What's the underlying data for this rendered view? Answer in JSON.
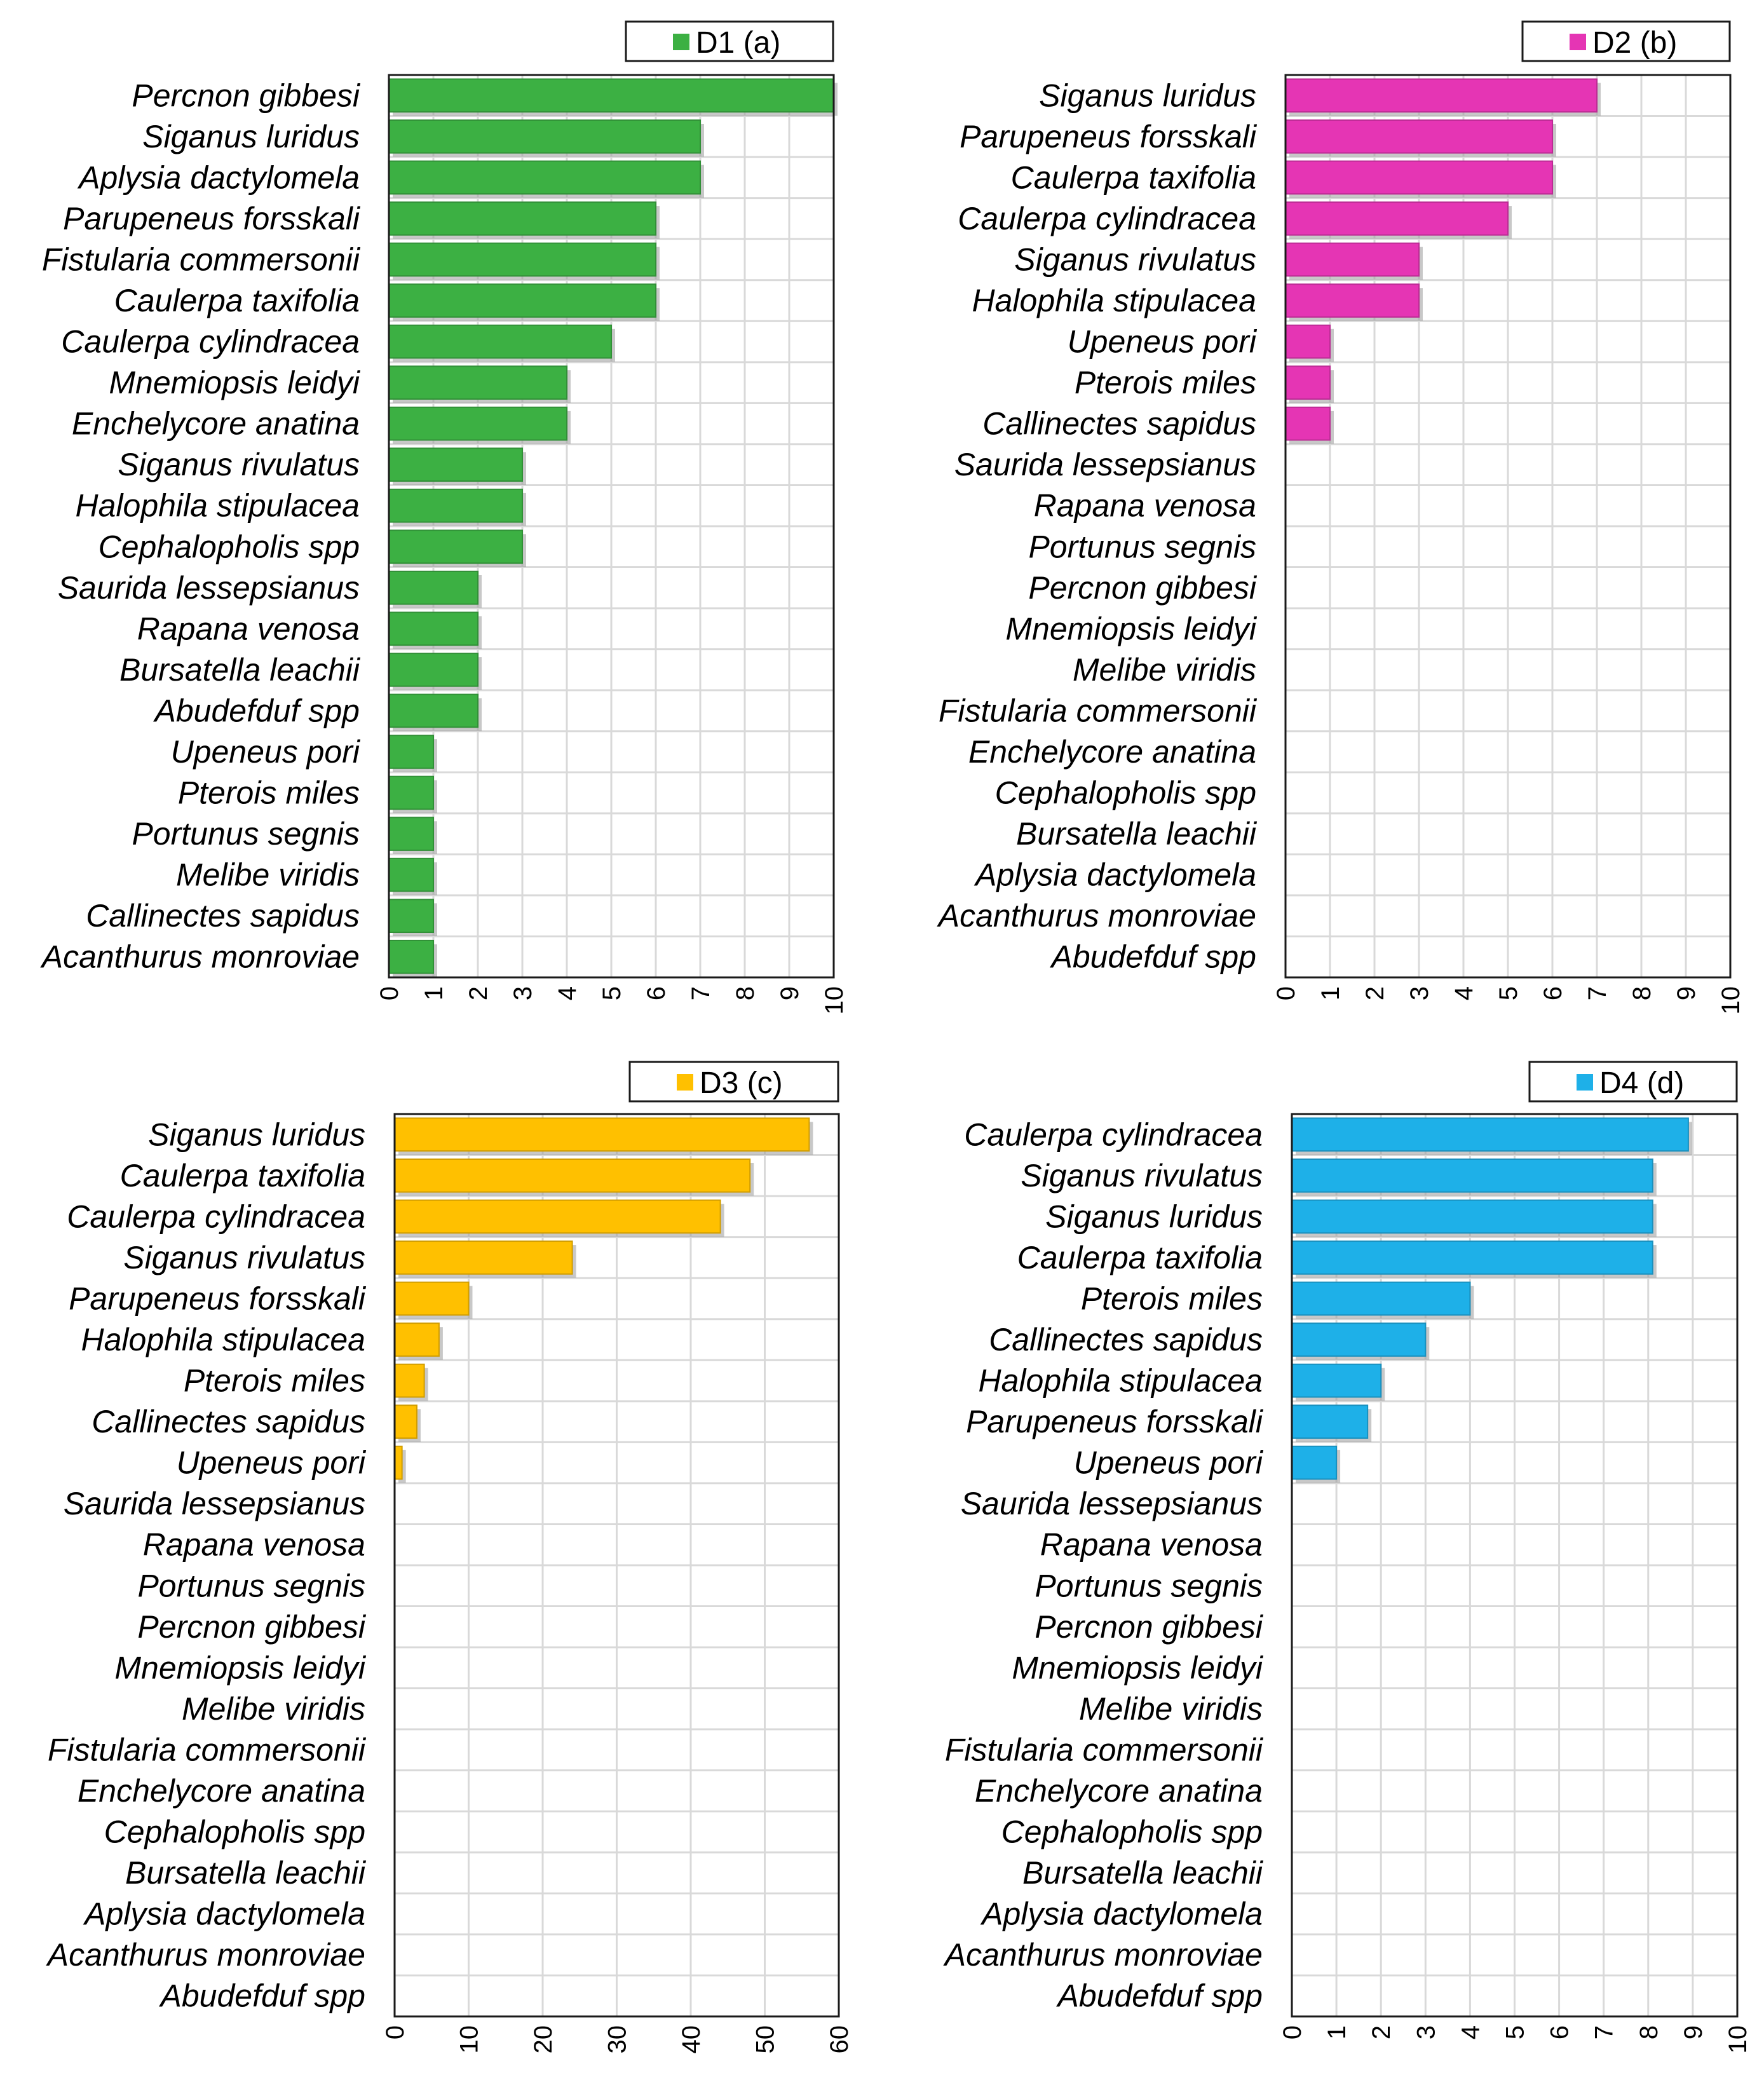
{
  "chart_data": [
    {
      "type": "bar",
      "orientation": "horizontal",
      "legend": "D1 (a)",
      "legend_position": "top-right",
      "color": "#3cb043",
      "xlim": [
        0,
        10
      ],
      "ticks": [
        0,
        1,
        2,
        3,
        4,
        5,
        6,
        7,
        8,
        9,
        10
      ],
      "grid": true,
      "categories": [
        "Percnon gibbesi",
        "Siganus luridus",
        "Aplysia dactylomela",
        "Parupeneus forsskali",
        "Fistularia commersonii",
        "Caulerpa taxifolia",
        "Caulerpa cylindracea",
        "Mnemiopsis leidyi",
        "Enchelycore anatina",
        "Siganus rivulatus",
        "Halophila stipulacea",
        "Cephalopholis spp",
        "Saurida lessepsianus",
        "Rapana venosa",
        "Bursatella leachii",
        "Abudefduf spp",
        "Upeneus pori",
        "Pterois miles",
        "Portunus segnis",
        "Melibe viridis",
        "Callinectes sapidus",
        "Acanthurus monroviae"
      ],
      "values": [
        10,
        7,
        7,
        6,
        6,
        6,
        5,
        4,
        4,
        3,
        3,
        3,
        2,
        2,
        2,
        2,
        1,
        1,
        1,
        1,
        1,
        1
      ]
    },
    {
      "type": "bar",
      "orientation": "horizontal",
      "legend": "D2 (b)",
      "legend_position": "top-right",
      "color": "#e535b4",
      "xlim": [
        0,
        10
      ],
      "ticks": [
        0,
        1,
        2,
        3,
        4,
        5,
        6,
        7,
        8,
        9,
        10
      ],
      "grid": true,
      "categories": [
        "Siganus luridus",
        "Parupeneus forsskali",
        "Caulerpa taxifolia",
        "Caulerpa cylindracea",
        "Siganus rivulatus",
        "Halophila stipulacea",
        "Upeneus pori",
        "Pterois miles",
        "Callinectes sapidus",
        "Saurida lessepsianus",
        "Rapana venosa",
        "Portunus segnis",
        "Percnon gibbesi",
        "Mnemiopsis leidyi",
        "Melibe viridis",
        "Fistularia commersonii",
        "Enchelycore anatina",
        "Cephalopholis spp",
        "Bursatella leachii",
        "Aplysia dactylomela",
        "Acanthurus monroviae",
        "Abudefduf spp"
      ],
      "values": [
        7,
        6,
        6,
        5,
        3,
        3,
        1,
        1,
        1,
        0,
        0,
        0,
        0,
        0,
        0,
        0,
        0,
        0,
        0,
        0,
        0,
        0
      ]
    },
    {
      "type": "bar",
      "orientation": "horizontal",
      "legend": "D3 (c)",
      "legend_position": "top-right",
      "color": "#ffc000",
      "xlim": [
        0,
        60
      ],
      "ticks": [
        0,
        10,
        20,
        30,
        40,
        50,
        60
      ],
      "grid": true,
      "categories": [
        "Siganus luridus",
        "Caulerpa taxifolia",
        "Caulerpa cylindracea",
        "Siganus rivulatus",
        "Parupeneus forsskali",
        "Halophila stipulacea",
        "Pterois miles",
        "Callinectes sapidus",
        "Upeneus pori",
        "Saurida lessepsianus",
        "Rapana venosa",
        "Portunus segnis",
        "Percnon gibbesi",
        "Mnemiopsis leidyi",
        "Melibe viridis",
        "Fistularia commersonii",
        "Enchelycore anatina",
        "Cephalopholis spp",
        "Bursatella leachii",
        "Aplysia dactylomela",
        "Acanthurus monroviae",
        "Abudefduf spp"
      ],
      "values": [
        56,
        48,
        44,
        24,
        10,
        6,
        4,
        3,
        1,
        0,
        0,
        0,
        0,
        0,
        0,
        0,
        0,
        0,
        0,
        0,
        0,
        0
      ]
    },
    {
      "type": "bar",
      "orientation": "horizontal",
      "legend": "D4 (d)",
      "legend_position": "top-right",
      "color": "#1eb0e8",
      "xlim": [
        0,
        10
      ],
      "ticks": [
        0,
        1,
        2,
        3,
        4,
        5,
        6,
        7,
        8,
        9,
        10
      ],
      "grid": true,
      "categories": [
        "Caulerpa cylindracea",
        "Siganus rivulatus",
        "Siganus luridus",
        "Caulerpa taxifolia",
        "Pterois miles",
        "Callinectes sapidus",
        "Halophila stipulacea",
        "Parupeneus forsskali",
        "Upeneus pori",
        "Saurida lessepsianus",
        "Rapana venosa",
        "Portunus segnis",
        "Percnon gibbesi",
        "Mnemiopsis leidyi",
        "Melibe viridis",
        "Fistularia commersonii",
        "Enchelycore anatina",
        "Cephalopholis spp",
        "Bursatella leachii",
        "Aplysia dactylomela",
        "Acanthurus monroviae",
        "Abudefduf spp"
      ],
      "values": [
        8.9,
        8.1,
        8.1,
        8.1,
        4,
        3,
        2,
        1.7,
        1,
        0,
        0,
        0,
        0,
        0,
        0,
        0,
        0,
        0,
        0,
        0,
        0,
        0
      ]
    }
  ]
}
